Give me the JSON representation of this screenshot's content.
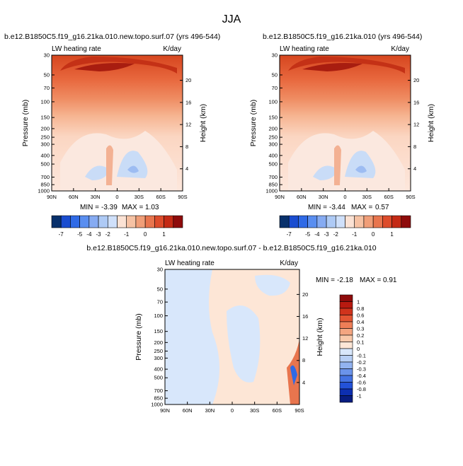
{
  "page_title": "JJA",
  "chart_data": [
    {
      "type": "heatmap",
      "title": "b.e12.B1850C5.f19_g16.21ka.010.new.topo.surf.07 (yrs 496-544)",
      "left_label": "LW heating rate",
      "units": "K/day",
      "ylabel": "Pressure (mb)",
      "y2label": "Height (km)",
      "x_ticks": [
        "90N",
        "60N",
        "30N",
        "0",
        "30S",
        "60S",
        "90S"
      ],
      "y_ticks": [
        "30",
        "50",
        "70",
        "100",
        "150",
        "200",
        "250",
        "300",
        "400",
        "500",
        "700",
        "850",
        "1000"
      ],
      "y2_ticks": [
        "20",
        "16",
        "12",
        "8",
        "4"
      ],
      "min_label": "MIN =",
      "min": "-3.39",
      "max_label": "MAX =",
      "max": "1.03"
    },
    {
      "type": "heatmap",
      "title": "b.e12.B1850C5.f19_g16.21ka.010 (yrs 496-544)",
      "left_label": "LW heating rate",
      "units": "K/day",
      "ylabel": "Pressure (mb)",
      "y2label": "Height (km)",
      "x_ticks": [
        "90N",
        "60N",
        "30N",
        "0",
        "30S",
        "60S",
        "90S"
      ],
      "y_ticks": [
        "30",
        "50",
        "70",
        "100",
        "150",
        "200",
        "250",
        "300",
        "400",
        "500",
        "700",
        "850",
        "1000"
      ],
      "y2_ticks": [
        "20",
        "16",
        "12",
        "8",
        "4"
      ],
      "min_label": "MIN =",
      "min": "-3.44",
      "max_label": "MAX =",
      "max": "0.57"
    },
    {
      "type": "heatmap",
      "title": "b.e12.B1850C5.f19_g16.21ka.010.new.topo.surf.07 - b.e12.B1850C5.f19_g16.21ka.010",
      "left_label": "LW heating rate",
      "units": "K/day",
      "ylabel": "Pressure (mb)",
      "y2label": "Height (km)",
      "x_ticks": [
        "90N",
        "60N",
        "30N",
        "0",
        "30S",
        "60S",
        "90S"
      ],
      "y_ticks": [
        "30",
        "50",
        "70",
        "100",
        "150",
        "200",
        "250",
        "300",
        "400",
        "500",
        "700",
        "850",
        "1000"
      ],
      "y2_ticks": [
        "20",
        "16",
        "12",
        "8",
        "4"
      ],
      "min_label": "MIN =",
      "min": "-2.18",
      "max_label": "MAX =",
      "max": "0.91"
    }
  ],
  "colorbar_top": {
    "labels": [
      "-7",
      "-5",
      "-4",
      "-3",
      "-2",
      "-1",
      "0",
      "1"
    ],
    "colors": [
      "#08306b",
      "#1a4dd0",
      "#2f6ae6",
      "#5a8ef0",
      "#86abf2",
      "#aecaf5",
      "#cfe0fa",
      "#fbe2d4",
      "#f6c2a4",
      "#f09e78",
      "#e8754e",
      "#dd4c2b",
      "#c42a15",
      "#8e0b0b"
    ]
  },
  "colorbar_diff": {
    "labels": [
      "1",
      "0.8",
      "0.6",
      "0.4",
      "0.3",
      "0.2",
      "0.1",
      "0",
      "-0.1",
      "-0.2",
      "-0.3",
      "-0.4",
      "-0.6",
      "-0.8",
      "-1"
    ],
    "colors": [
      "#8e0b0b",
      "#b81a10",
      "#d0331c",
      "#e35533",
      "#ee7e57",
      "#f4a580",
      "#f9c9aa",
      "#fde6d6",
      "#d8e7fb",
      "#b7cff5",
      "#92b3f0",
      "#6b93ea",
      "#4472e2",
      "#2352d8",
      "#0d2fb0",
      "#081d80"
    ]
  }
}
